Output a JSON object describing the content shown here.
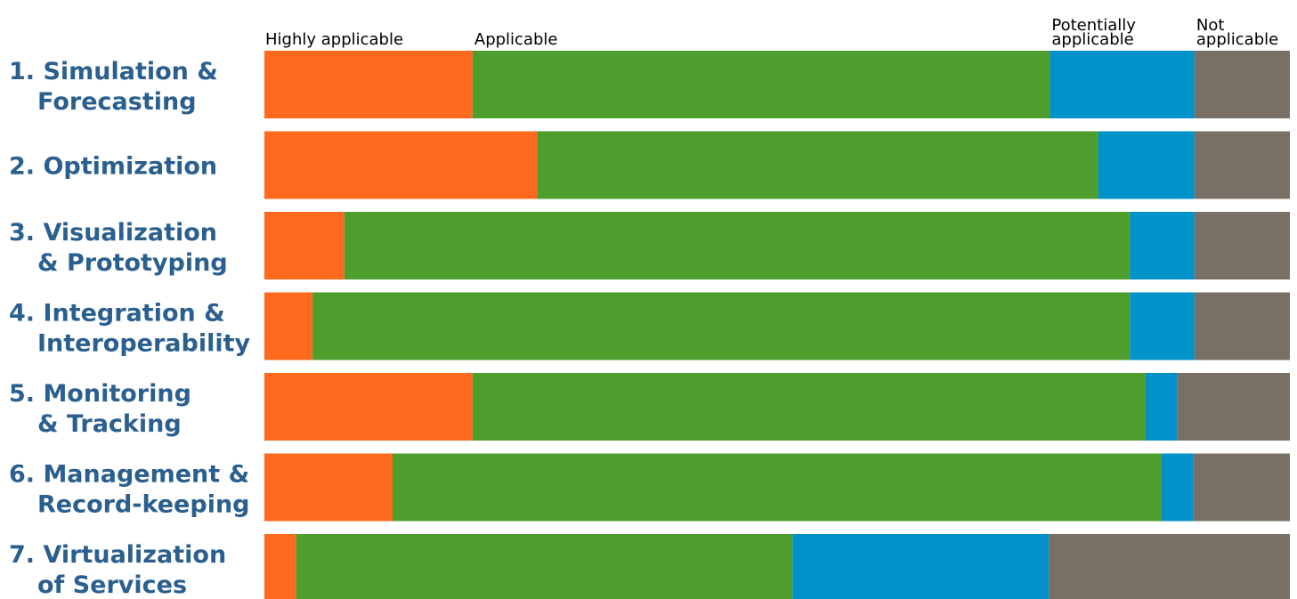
{
  "chart_data": {
    "type": "bar",
    "orientation": "horizontal",
    "stacked": true,
    "normalized": true,
    "title": "",
    "xlabel": "",
    "ylabel": "",
    "xlim": [
      0,
      100
    ],
    "grid": false,
    "legend_position": "top",
    "categories": [
      {
        "line1": "1. Simulation &",
        "line2": "Forecasting"
      },
      {
        "line1": "2. Optimization",
        "line2": ""
      },
      {
        "line1": "3. Visualization",
        "line2": "& Prototyping"
      },
      {
        "line1": "4. Integration &",
        "line2": "Interoperability"
      },
      {
        "line1": "5. Monitoring",
        "line2": "& Tracking"
      },
      {
        "line1": "6. Management &",
        "line2": "Record-keeping"
      },
      {
        "line1": "7. Virtualization",
        "line2": "of Services"
      }
    ],
    "series": [
      {
        "name": "Highly applicable",
        "legend_lines": [
          "Highly applicable"
        ],
        "color": "#ff6a1e",
        "values": [
          20.3,
          26.6,
          7.8,
          4.7,
          20.3,
          12.5,
          3.1
        ]
      },
      {
        "name": "Applicable",
        "legend_lines": [
          "Applicable"
        ],
        "color": "#4e9e2e",
        "values": [
          56.3,
          54.7,
          76.6,
          79.7,
          65.6,
          75.0,
          48.4
        ]
      },
      {
        "name": "Potentially applicable",
        "legend_lines": [
          "Potentially",
          "applicable"
        ],
        "color": "#0092c8",
        "values": [
          14.1,
          9.4,
          6.3,
          6.3,
          3.1,
          3.1,
          25.0
        ]
      },
      {
        "name": "Not applicable",
        "legend_lines": [
          "Not",
          "applicable"
        ],
        "color": "#787064",
        "values": [
          9.3,
          9.3,
          9.3,
          9.3,
          11.0,
          9.4,
          23.5
        ]
      }
    ]
  }
}
